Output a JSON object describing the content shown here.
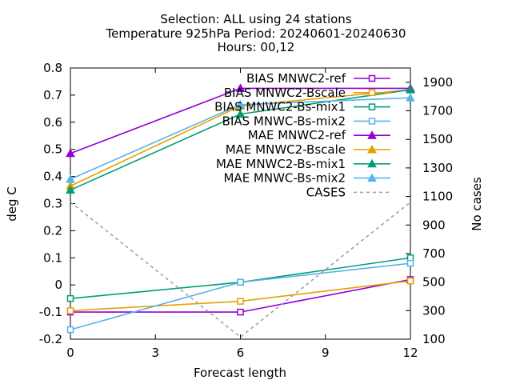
{
  "chart_data": {
    "type": "line",
    "title_lines": [
      "Selection: ALL using    24 stations",
      "Temperature 925hPa   Period: 20240601-20240630",
      "Hours: 00,12"
    ],
    "xlabel": "Forecast length",
    "ylabel": "deg C",
    "y2label": "No cases",
    "xlim": [
      0,
      12
    ],
    "ylim": [
      -0.2,
      0.8
    ],
    "y2lim": [
      100,
      2000
    ],
    "xticks": [
      0,
      3,
      6,
      9,
      12
    ],
    "yticks": [
      "-0.2",
      "-0.1",
      "0",
      "0.1",
      "0.2",
      "0.3",
      "0.4",
      "0.5",
      "0.6",
      "0.7",
      "0.8"
    ],
    "y2ticks": [
      100,
      300,
      500,
      700,
      900,
      1100,
      1300,
      1500,
      1700,
      1900
    ],
    "grid": false,
    "legend_position": "top-right",
    "x": [
      0,
      6,
      12
    ],
    "series": [
      {
        "name": "BIAS MNWC2-ref",
        "axis": "y1",
        "marker": "square",
        "color": "#9400d3",
        "values": [
          -0.1,
          -0.1,
          0.02
        ]
      },
      {
        "name": "BIAS MNWC2-Bscale",
        "axis": "y1",
        "marker": "square",
        "color": "#e69f00",
        "values": [
          -0.095,
          -0.06,
          0.015
        ]
      },
      {
        "name": "BIAS MNWC2-Bs-mix1",
        "axis": "y1",
        "marker": "square",
        "color": "#009e73",
        "values": [
          -0.05,
          0.01,
          0.1
        ]
      },
      {
        "name": "BIAS MNWC-Bs-mix2",
        "axis": "y1",
        "marker": "square",
        "color": "#56b4e9",
        "values": [
          -0.165,
          0.01,
          0.08
        ]
      },
      {
        "name": "MAE MNWC2-ref",
        "axis": "y1",
        "marker": "triangle",
        "color": "#9400d3",
        "values": [
          0.485,
          0.725,
          0.725
        ]
      },
      {
        "name": "MAE MNWC2-Bscale",
        "axis": "y1",
        "marker": "triangle",
        "color": "#e69f00",
        "values": [
          0.365,
          0.66,
          0.72
        ]
      },
      {
        "name": "MAE MNWC2-Bs-mix1",
        "axis": "y1",
        "marker": "triangle",
        "color": "#009e73",
        "values": [
          0.35,
          0.63,
          0.72
        ]
      },
      {
        "name": "MAE MNWC-Bs-mix2",
        "axis": "y1",
        "marker": "triangle",
        "color": "#56b4e9",
        "values": [
          0.39,
          0.665,
          0.69
        ]
      },
      {
        "name": "CASES",
        "axis": "y2",
        "marker": "none",
        "dashed": true,
        "color": "#a0a0a0",
        "values": [
          1060,
          115,
          1060
        ]
      }
    ]
  }
}
